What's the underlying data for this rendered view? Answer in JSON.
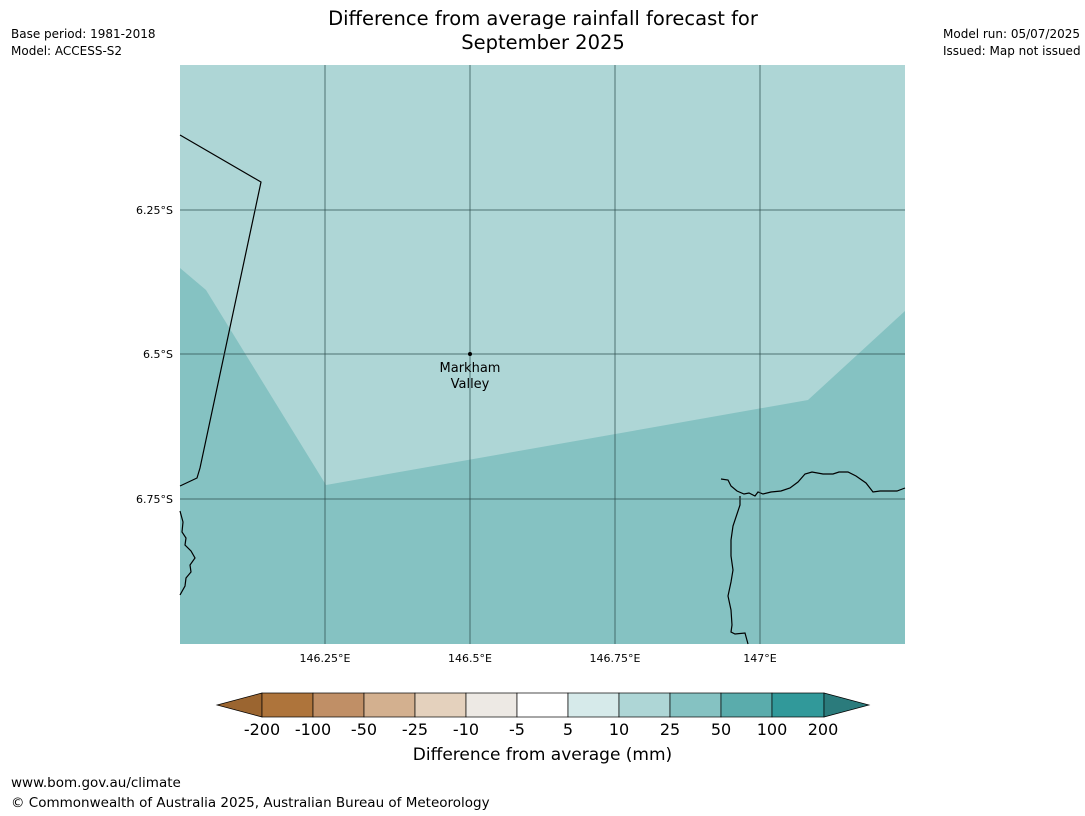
{
  "header": {
    "title_line1": "Difference from average rainfall forecast for",
    "title_line2": "September 2025",
    "base_period": "Base period: 1981-2018",
    "model": "Model: ACCESS-S2",
    "model_run": "Model run: 05/07/2025",
    "issued": "Issued: Map not issued"
  },
  "map": {
    "lat_ticks": [
      "6.25°S",
      "6.5°S",
      "6.75°S"
    ],
    "lon_ticks": [
      "146.25°E",
      "146.5°E",
      "146.75°E",
      "147°E"
    ],
    "place_label_line1": "Markham",
    "place_label_line2": "Valley",
    "colors": {
      "band_10_25": "#aed6d6",
      "band_25_50": "#85c2c2",
      "grid": "#2f4f4f",
      "coast": "#000000"
    }
  },
  "colorbar": {
    "label": "Difference from average (mm)",
    "ticks": [
      "-200",
      "-100",
      "-50",
      "-25",
      "-10",
      "-5",
      "5",
      "10",
      "25",
      "50",
      "100",
      "200"
    ],
    "colors": [
      "#9b6530",
      "#ae743b",
      "#c08f66",
      "#d3b08f",
      "#e4d1bd",
      "#ede9e4",
      "#ffffff",
      "#d6eaea",
      "#aed6d6",
      "#85c2c2",
      "#5aacac",
      "#31999a",
      "#2b7b7c"
    ]
  },
  "footer": {
    "url": "www.bom.gov.au/climate",
    "copyright": "© Commonwealth of Australia 2025, Australian Bureau of Meteorology"
  }
}
